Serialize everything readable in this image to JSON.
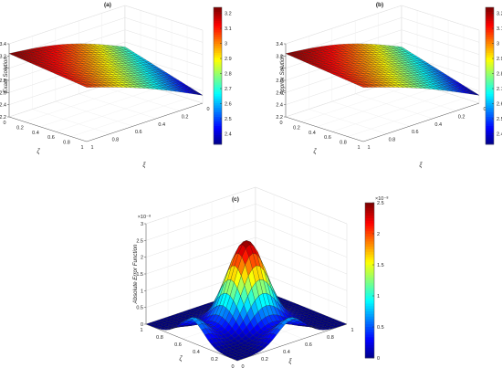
{
  "chart_data": [
    {
      "type": "surface",
      "title": "(a)",
      "xlabel": "ξ",
      "ylabel": "ζ",
      "zlabel": "Exact Solution",
      "xlim": [
        0,
        1
      ],
      "ylim": [
        0,
        1
      ],
      "zlim": [
        2.2,
        3.4
      ],
      "x_ticks": [
        "1",
        "0.8",
        "0.6",
        "0.4",
        "0.2",
        "0"
      ],
      "y_ticks": [
        "0",
        "0.2",
        "0.4",
        "0.6",
        "0.8",
        "1"
      ],
      "z_ticks": [
        "2.2",
        "2.4",
        "2.6",
        "2.8",
        "3",
        "3.2",
        "3.4"
      ],
      "colorbar": {
        "range": [
          2.33,
          3.24
        ],
        "ticks": [
          "2.4",
          "2.5",
          "2.6",
          "2.7",
          "2.8",
          "2.9",
          "3",
          "3.1",
          "3.2"
        ],
        "colormap": "jet"
      },
      "surface": {
        "function": "exact",
        "corner_values": {
          "xi0_zeta0": 2.72,
          "xi1_zeta0": 3.24,
          "xi0_zeta1": 2.33,
          "xi1_zeta1": 3.09
        }
      },
      "grid": true
    },
    {
      "type": "surface",
      "title": "(b)",
      "xlabel": "ξ",
      "ylabel": "ζ",
      "zlabel": "Approx Solution",
      "xlim": [
        0,
        1
      ],
      "ylim": [
        0,
        1
      ],
      "zlim": [
        2.2,
        3.4
      ],
      "x_ticks": [
        "1",
        "0.8",
        "0.6",
        "0.4",
        "0.2",
        "0"
      ],
      "y_ticks": [
        "0",
        "0.2",
        "0.4",
        "0.6",
        "0.8",
        "1"
      ],
      "z_ticks": [
        "2.2",
        "2.4",
        "2.6",
        "2.8",
        "3",
        "3.2",
        "3.4"
      ],
      "colorbar": {
        "range": [
          2.33,
          3.24
        ],
        "ticks": [
          "2.4",
          "2.5",
          "2.6",
          "2.7",
          "2.8",
          "2.9",
          "3",
          "3.1",
          "3.2"
        ],
        "colormap": "jet"
      },
      "surface": {
        "function": "exact",
        "corner_values": {
          "xi0_zeta0": 2.72,
          "xi1_zeta0": 3.24,
          "xi0_zeta1": 2.33,
          "xi1_zeta1": 3.09
        }
      },
      "grid": true
    },
    {
      "type": "surface",
      "title": "(c)",
      "xlabel": "ξ",
      "ylabel": "ζ",
      "zlabel": "Absolute Error Function",
      "z_exponent": "×10⁻⁸",
      "xlim": [
        0,
        1
      ],
      "ylim": [
        0,
        1
      ],
      "zlim": [
        0,
        3
      ],
      "x_ticks": [
        "0",
        "0.2",
        "0.4",
        "0.6",
        "0.8",
        "1"
      ],
      "y_ticks": [
        "1",
        "0.8",
        "0.6",
        "0.4",
        "0.2",
        "0"
      ],
      "z_ticks": [
        "0",
        "0.5",
        "1",
        "1.5",
        "2",
        "2.5",
        "3"
      ],
      "colorbar": {
        "range": [
          0,
          2.5
        ],
        "exponent": "×10⁻⁸",
        "ticks": [
          "0",
          "0.5",
          "1",
          "1.5",
          "2",
          "2.5"
        ],
        "colormap": "jet"
      },
      "surface": {
        "function": "error",
        "peak_value": 2.5,
        "peak_location": [
          0.5,
          0.5
        ]
      },
      "grid": true
    }
  ]
}
